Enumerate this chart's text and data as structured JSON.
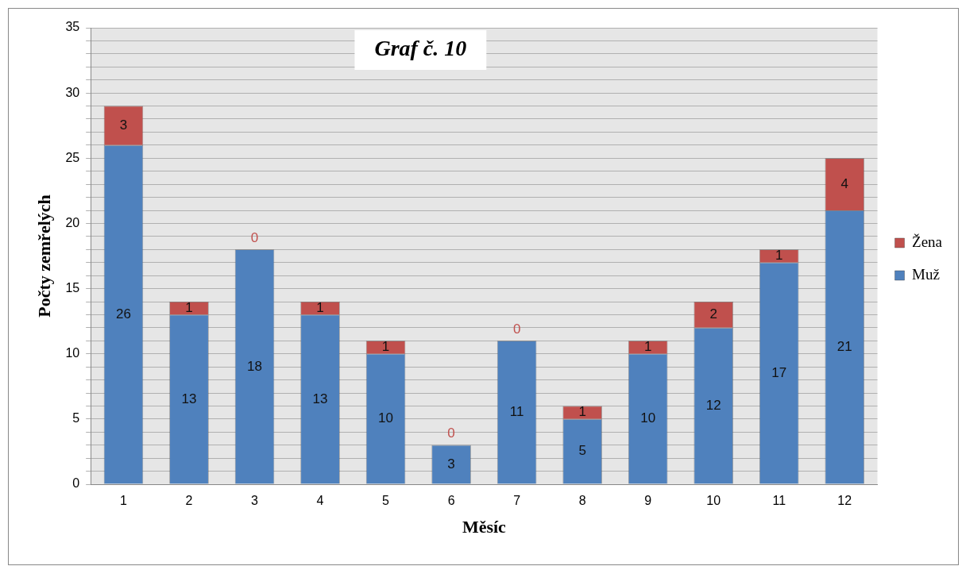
{
  "chart_data": {
    "type": "bar",
    "title": "Graf č. 10",
    "xlabel": "Měsíc",
    "ylabel": "Počty zemřelých",
    "categories": [
      "1",
      "2",
      "3",
      "4",
      "5",
      "6",
      "7",
      "8",
      "9",
      "10",
      "11",
      "12"
    ],
    "stacked": true,
    "series": [
      {
        "name": "Muž",
        "color": "#4f81bd",
        "values": [
          26,
          13,
          18,
          13,
          10,
          3,
          11,
          5,
          10,
          12,
          17,
          21
        ]
      },
      {
        "name": "Žena",
        "color": "#c0504d",
        "values": [
          3,
          1,
          0,
          1,
          1,
          0,
          0,
          1,
          1,
          2,
          1,
          4
        ]
      }
    ],
    "ylim": [
      0,
      35
    ],
    "yticks": [
      0,
      {
        "value": 1,
        "label": null
      },
      {
        "value": 2,
        "label": null
      },
      {
        "value": 3,
        "label": null
      },
      {
        "value": 4,
        "label": null
      },
      5,
      {
        "value": 6,
        "label": null
      },
      {
        "value": 7,
        "label": null
      },
      {
        "value": 8,
        "label": null
      },
      {
        "value": 9,
        "label": null
      },
      10,
      {
        "value": 11,
        "label": null
      },
      {
        "value": 12,
        "label": null
      },
      {
        "value": 13,
        "label": null
      },
      {
        "value": 14,
        "label": null
      },
      15,
      {
        "value": 16,
        "label": null
      },
      {
        "value": 17,
        "label": null
      },
      {
        "value": 18,
        "label": null
      },
      {
        "value": 19,
        "label": null
      },
      20,
      {
        "value": 21,
        "label": null
      },
      {
        "value": 22,
        "label": null
      },
      {
        "value": 23,
        "label": null
      },
      {
        "value": 24,
        "label": null
      },
      25,
      {
        "value": 26,
        "label": null
      },
      {
        "value": 27,
        "label": null
      },
      {
        "value": 28,
        "label": null
      },
      {
        "value": 29,
        "label": null
      },
      30,
      {
        "value": 31,
        "label": null
      },
      {
        "value": 32,
        "label": null
      },
      {
        "value": 33,
        "label": null
      },
      {
        "value": 34,
        "label": null
      },
      35
    ],
    "grid": "y",
    "legend": "right",
    "data_labels": true
  }
}
